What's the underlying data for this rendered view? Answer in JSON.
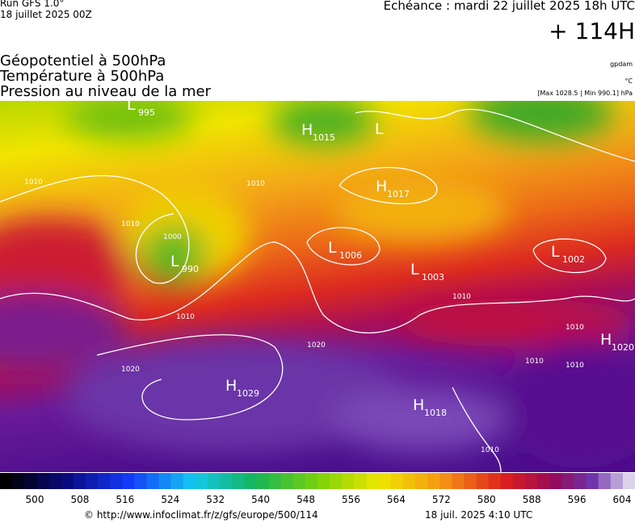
{
  "header": {
    "model": "Run GFS 1.0°",
    "run_date": "18 juillet 2025 00Z",
    "valid_time": "Echéance : mardi 22 juillet 2025 18h UTC",
    "lead_time": "+ 114H"
  },
  "titles": [
    "Géopotentiel à 500hPa",
    "Température à 500hPa",
    "Pression au niveau de la mer"
  ],
  "units": {
    "geopotential": "gpdam",
    "temperature": "°C",
    "pressure_range": "[Max 1028.5 | Min 990.1] hPa"
  },
  "centers": [
    {
      "letter": "L",
      "value": 995
    },
    {
      "letter": "H",
      "value": 1015
    },
    {
      "letter": "L",
      "value": null
    },
    {
      "letter": "H",
      "value": 1017
    },
    {
      "letter": "L",
      "value": 990
    },
    {
      "letter": "L",
      "value": 1006
    },
    {
      "letter": "L",
      "value": 1003
    },
    {
      "letter": "L",
      "value": 1002
    },
    {
      "letter": "H",
      "value": 1020
    },
    {
      "letter": "H",
      "value": 1029
    },
    {
      "letter": "H",
      "value": 1018
    }
  ],
  "isobar_labels": [
    1010,
    1010,
    1000,
    1010,
    1010,
    1020,
    1020,
    1010,
    1010,
    1010,
    1010,
    1010
  ],
  "colorbar_ticks": [
    500,
    508,
    516,
    524,
    532,
    540,
    548,
    556,
    564,
    572,
    580,
    588,
    596,
    604
  ],
  "footer": {
    "url": "© http://www.infoclimat.fr/z/gfs/europe/500/114",
    "timestamp": "18 juil. 2025  4:10 UTC"
  }
}
